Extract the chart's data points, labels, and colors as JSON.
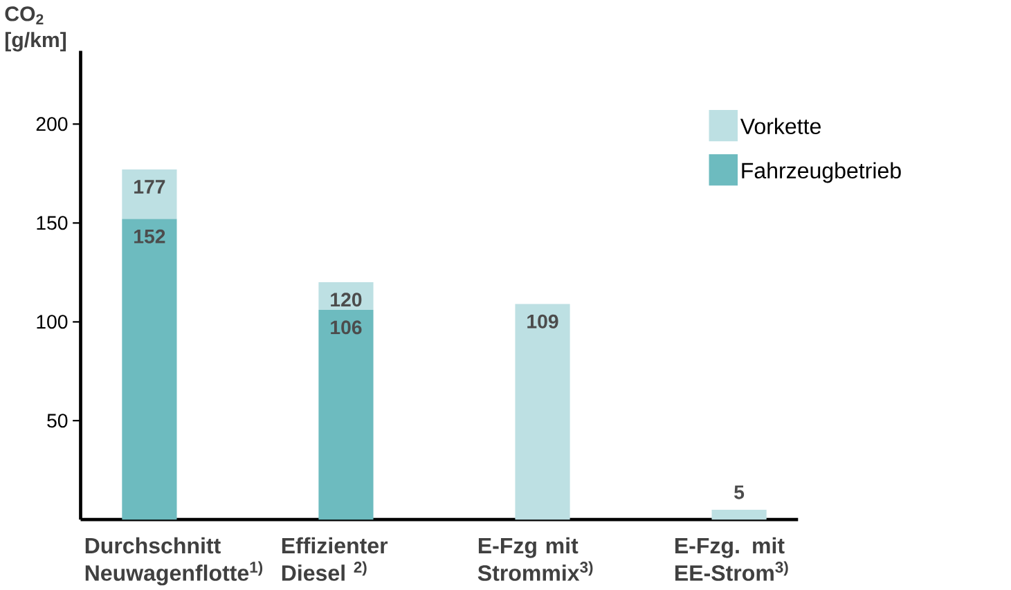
{
  "chart_data": {
    "type": "bar",
    "stacked": true,
    "ylabel": "CO$_{2}$ [g/km]",
    "categories": [
      "Durchschnitt Neuwagenflotte$^{1)}$",
      "Effizienter Diesel $^{2)}$",
      "E-Fzg mit Strommix$^{3)}$",
      "E-Fzg. mit EE-Strom$^{3)}$"
    ],
    "series": [
      {
        "name": "Fahrzeugbetrieb",
        "color": "#6dbbbf",
        "values": [
          152,
          106,
          0,
          0
        ],
        "value_labels": [
          "152",
          "106",
          null,
          null
        ]
      },
      {
        "name": "Vorkette",
        "color": "#bde0e3",
        "values": [
          25,
          14,
          109,
          5
        ]
      }
    ],
    "totals": [
      "177",
      "120",
      "109",
      "5"
    ],
    "ylim": [
      0,
      237
    ],
    "yticks": [
      50,
      100,
      150,
      200
    ],
    "grid": false,
    "legend": "top right"
  }
}
